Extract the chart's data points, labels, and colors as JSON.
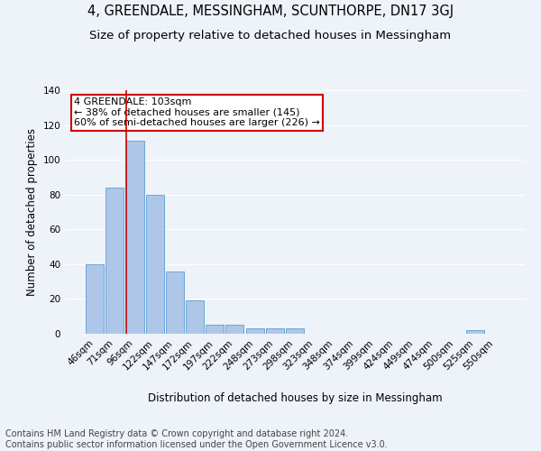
{
  "title": "4, GREENDALE, MESSINGHAM, SCUNTHORPE, DN17 3GJ",
  "subtitle": "Size of property relative to detached houses in Messingham",
  "xlabel": "Distribution of detached houses by size in Messingham",
  "ylabel": "Number of detached properties",
  "footer_line1": "Contains HM Land Registry data © Crown copyright and database right 2024.",
  "footer_line2": "Contains public sector information licensed under the Open Government Licence v3.0.",
  "categories": [
    "46sqm",
    "71sqm",
    "96sqm",
    "122sqm",
    "147sqm",
    "172sqm",
    "197sqm",
    "222sqm",
    "248sqm",
    "273sqm",
    "298sqm",
    "323sqm",
    "348sqm",
    "374sqm",
    "399sqm",
    "424sqm",
    "449sqm",
    "474sqm",
    "500sqm",
    "525sqm",
    "550sqm"
  ],
  "values": [
    40,
    84,
    111,
    80,
    36,
    19,
    5,
    5,
    3,
    3,
    3,
    0,
    0,
    0,
    0,
    0,
    0,
    0,
    0,
    2,
    0
  ],
  "bar_color": "#aec6e8",
  "bar_edge_color": "#5a9fd4",
  "highlight_bar_index": 2,
  "highlight_color": "#cc0000",
  "annotation_text": "4 GREENDALE: 103sqm\n← 38% of detached houses are smaller (145)\n60% of semi-detached houses are larger (226) →",
  "annotation_box_color": "#ffffff",
  "annotation_box_edge_color": "#cc0000",
  "ylim": [
    0,
    140
  ],
  "yticks": [
    0,
    20,
    40,
    60,
    80,
    100,
    120,
    140
  ],
  "bg_color": "#eef2f9",
  "grid_color": "#ffffff",
  "title_fontsize": 10.5,
  "subtitle_fontsize": 9.5,
  "axis_label_fontsize": 8.5,
  "tick_fontsize": 7.5,
  "annotation_fontsize": 8,
  "footer_fontsize": 7
}
